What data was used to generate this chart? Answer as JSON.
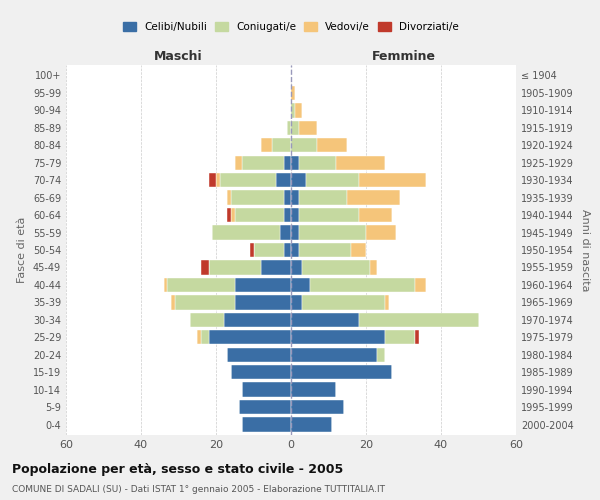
{
  "age_groups": [
    "0-4",
    "5-9",
    "10-14",
    "15-19",
    "20-24",
    "25-29",
    "30-34",
    "35-39",
    "40-44",
    "45-49",
    "50-54",
    "55-59",
    "60-64",
    "65-69",
    "70-74",
    "75-79",
    "80-84",
    "85-89",
    "90-94",
    "95-99",
    "100+"
  ],
  "birth_years": [
    "2000-2004",
    "1995-1999",
    "1990-1994",
    "1985-1989",
    "1980-1984",
    "1975-1979",
    "1970-1974",
    "1965-1969",
    "1960-1964",
    "1955-1959",
    "1950-1954",
    "1945-1949",
    "1940-1944",
    "1935-1939",
    "1930-1934",
    "1925-1929",
    "1920-1924",
    "1915-1919",
    "1910-1914",
    "1905-1909",
    "≤ 1904"
  ],
  "males": {
    "celibi": [
      13,
      14,
      13,
      16,
      17,
      22,
      18,
      15,
      15,
      8,
      2,
      3,
      2,
      2,
      4,
      2,
      0,
      0,
      0,
      0,
      0
    ],
    "coniugati": [
      0,
      0,
      0,
      0,
      0,
      2,
      9,
      16,
      18,
      14,
      8,
      18,
      13,
      14,
      15,
      11,
      5,
      1,
      0,
      0,
      0
    ],
    "vedovi": [
      0,
      0,
      0,
      0,
      0,
      1,
      0,
      1,
      1,
      0,
      0,
      0,
      1,
      1,
      1,
      2,
      3,
      0,
      0,
      0,
      0
    ],
    "divorziati": [
      0,
      0,
      0,
      0,
      0,
      0,
      0,
      0,
      0,
      2,
      1,
      0,
      1,
      0,
      2,
      0,
      0,
      0,
      0,
      0,
      0
    ]
  },
  "females": {
    "nubili": [
      11,
      14,
      12,
      27,
      23,
      25,
      18,
      3,
      5,
      3,
      2,
      2,
      2,
      2,
      4,
      2,
      0,
      0,
      0,
      0,
      0
    ],
    "coniugate": [
      0,
      0,
      0,
      0,
      2,
      8,
      32,
      22,
      28,
      18,
      14,
      18,
      16,
      13,
      14,
      10,
      7,
      2,
      1,
      0,
      0
    ],
    "vedove": [
      0,
      0,
      0,
      0,
      0,
      0,
      0,
      1,
      3,
      2,
      4,
      8,
      9,
      14,
      18,
      13,
      8,
      5,
      2,
      1,
      0
    ],
    "divorziate": [
      0,
      0,
      0,
      0,
      0,
      1,
      0,
      0,
      0,
      0,
      0,
      0,
      0,
      0,
      0,
      0,
      0,
      0,
      0,
      0,
      0
    ]
  },
  "color_celibi": "#3a6ea5",
  "color_coniugati": "#c5d9a0",
  "color_vedovi": "#f5c57a",
  "color_divorziati": "#c0392b",
  "title": "Popolazione per età, sesso e stato civile - 2005",
  "subtitle": "COMUNE DI SADALI (SU) - Dati ISTAT 1° gennaio 2005 - Elaborazione TUTTITALIA.IT",
  "xlabel_left": "Maschi",
  "xlabel_right": "Femmine",
  "ylabel_left": "Fasce di età",
  "ylabel_right": "Anni di nascita",
  "xlim": 60,
  "bg_color": "#f0f0f0",
  "plot_bg": "#ffffff"
}
